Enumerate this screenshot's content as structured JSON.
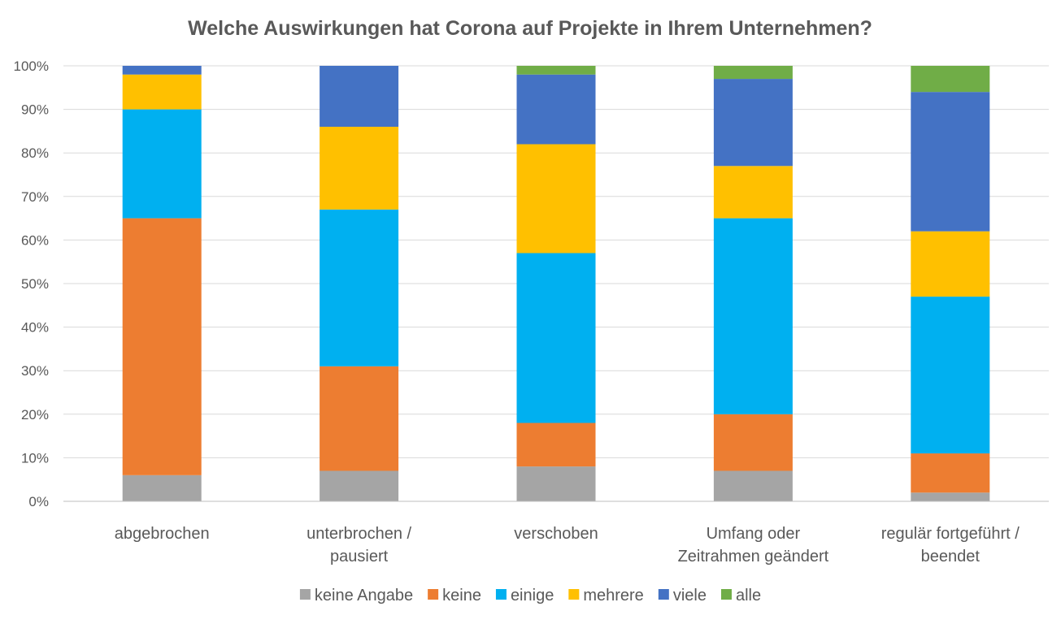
{
  "chart_data": {
    "type": "bar",
    "stacked": true,
    "percent": true,
    "title": "Welche Auswirkungen hat Corona auf Projekte in Ihrem Unternehmen?",
    "categories": [
      [
        "abgebrochen"
      ],
      [
        "unterbrochen /",
        "pausiert"
      ],
      [
        "verschoben"
      ],
      [
        "Umfang oder",
        "Zeitrahmen geändert"
      ],
      [
        "regulär fortgeführt /",
        "beendet"
      ]
    ],
    "yticks": [
      "0%",
      "10%",
      "20%",
      "30%",
      "40%",
      "50%",
      "60%",
      "70%",
      "80%",
      "90%",
      "100%"
    ],
    "ylim": [
      0,
      100
    ],
    "legend_position": "bottom",
    "series": [
      {
        "name": "keine Angabe",
        "color": "#a5a5a5",
        "values": [
          6,
          7,
          8,
          7,
          2
        ]
      },
      {
        "name": "keine",
        "color": "#ed7d31",
        "values": [
          59,
          24,
          10,
          13,
          9
        ]
      },
      {
        "name": "einige",
        "color": "#00b0f0",
        "values": [
          25,
          36,
          39,
          45,
          36
        ]
      },
      {
        "name": "mehrere",
        "color": "#ffc000",
        "values": [
          8,
          19,
          25,
          12,
          15
        ]
      },
      {
        "name": "viele",
        "color": "#4472c4",
        "values": [
          2,
          14,
          16,
          20,
          32
        ]
      },
      {
        "name": "alle",
        "color": "#70ad47",
        "values": [
          0,
          0,
          2,
          3,
          6
        ]
      }
    ]
  }
}
